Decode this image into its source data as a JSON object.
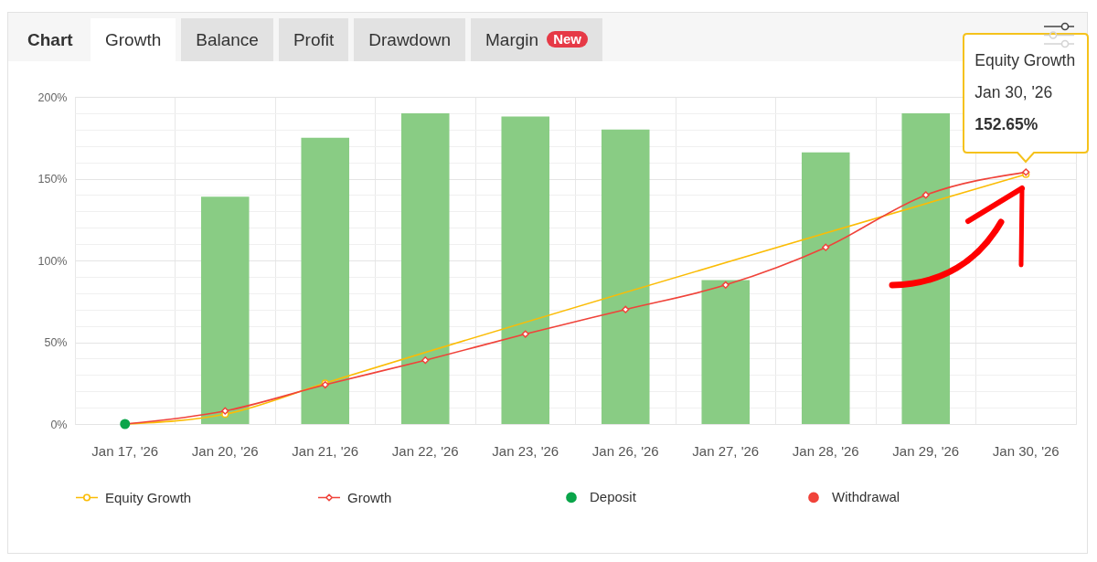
{
  "chart_data": {
    "type": "bar",
    "title": "Chart",
    "categories": [
      "Jan 17, '26",
      "Jan 20, '26",
      "Jan 21, '26",
      "Jan 22, '26",
      "Jan 23, '26",
      "Jan 26, '26",
      "Jan 27, '26",
      "Jan 28, '26",
      "Jan 29, '26",
      "Jan 30, '26"
    ],
    "series": [
      {
        "color": "#89cc84",
        "values": [
          null,
          139,
          175,
          190,
          188,
          180,
          88,
          166,
          190,
          null
        ]
      },
      {
        "name": "Equity Growth",
        "type": "line",
        "color": "#fbbc05",
        "marker": "circle",
        "x": [
          "Jan 17, '26",
          "Jan 20, '26",
          "Jan 21, '26",
          "Jan 30, '26"
        ],
        "values": [
          0,
          6,
          25,
          152.65
        ]
      },
      {
        "name": "Growth",
        "type": "line",
        "color": "#f0433a",
        "marker": "diamond",
        "values": [
          0,
          8,
          24,
          39,
          55,
          70,
          85,
          108,
          140,
          154
        ]
      },
      {
        "name": "Deposit",
        "type": "scatter",
        "color": "#0aa54a",
        "marker": "circle",
        "x": [
          "Jan 17, '26"
        ],
        "values": [
          0
        ]
      },
      {
        "name": "Withdrawal",
        "type": "scatter",
        "color": "#f0433a",
        "marker": "circle",
        "values": [
          null,
          null,
          null,
          null,
          null,
          null,
          null,
          null,
          null,
          null
        ]
      }
    ],
    "ylim": [
      0,
      200
    ],
    "yticks": [
      {
        "value": 0,
        "label": "0%"
      },
      {
        "value": 10,
        "label": null
      },
      {
        "value": 20,
        "label": null
      },
      {
        "value": 30,
        "label": null
      },
      {
        "value": 40,
        "label": null
      },
      {
        "value": 50,
        "label": "50%"
      },
      {
        "value": 60,
        "label": null
      },
      {
        "value": 70,
        "label": null
      },
      {
        "value": 80,
        "label": null
      },
      {
        "value": 90,
        "label": null
      },
      {
        "value": 100,
        "label": "100%"
      },
      {
        "value": 110,
        "label": null
      },
      {
        "value": 120,
        "label": null
      },
      {
        "value": 130,
        "label": null
      },
      {
        "value": 140,
        "label": null
      },
      {
        "value": 150,
        "label": "150%"
      },
      {
        "value": 160,
        "label": null
      },
      {
        "value": 170,
        "label": null
      },
      {
        "value": 180,
        "label": null
      },
      {
        "value": 190,
        "label": null
      },
      {
        "value": 200,
        "label": "200%"
      }
    ],
    "grid": true,
    "legend": "bottom",
    "annotations": [
      "Growth",
      "Balance",
      "Profit",
      "Drawdown",
      "Margin",
      "New",
      {
        "text": "Equity Growth\nJan 30, '26\n152.65%",
        "x": "Jan 30, '26",
        "y": 152.65
      }
    ]
  }
}
